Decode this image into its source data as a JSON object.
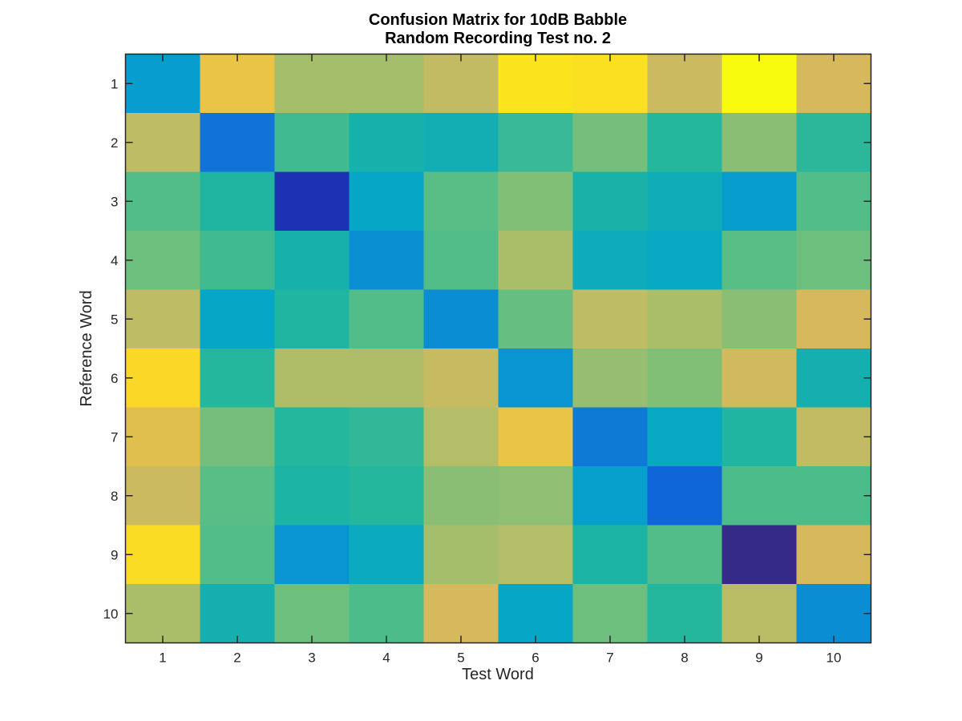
{
  "chart_data": {
    "type": "heatmap",
    "title": [
      "Confusion Matrix for 10dB Babble",
      "Random Recording Test no. 2"
    ],
    "xlabel": "Test Word",
    "ylabel": "Reference Word",
    "x_categories": [
      "1",
      "2",
      "3",
      "4",
      "5",
      "6",
      "7",
      "8",
      "9",
      "10"
    ],
    "y_categories": [
      "1",
      "2",
      "3",
      "4",
      "5",
      "6",
      "7",
      "8",
      "9",
      "10"
    ],
    "colormap": "parula",
    "color_scale": [
      0,
      1
    ],
    "values": [
      [
        0.33,
        0.85,
        0.7,
        0.7,
        0.76,
        0.95,
        0.94,
        0.78,
        1.0,
        0.8
      ],
      [
        0.75,
        0.2,
        0.55,
        0.47,
        0.45,
        0.54,
        0.63,
        0.51,
        0.66,
        0.52
      ],
      [
        0.58,
        0.5,
        0.05,
        0.4,
        0.59,
        0.65,
        0.48,
        0.44,
        0.33,
        0.58
      ],
      [
        0.62,
        0.55,
        0.47,
        0.28,
        0.58,
        0.71,
        0.43,
        0.41,
        0.59,
        0.62
      ],
      [
        0.75,
        0.4,
        0.5,
        0.58,
        0.27,
        0.61,
        0.75,
        0.71,
        0.66,
        0.8
      ],
      [
        0.92,
        0.51,
        0.72,
        0.72,
        0.77,
        0.29,
        0.68,
        0.65,
        0.79,
        0.46
      ],
      [
        0.83,
        0.63,
        0.51,
        0.53,
        0.73,
        0.85,
        0.22,
        0.41,
        0.5,
        0.76
      ],
      [
        0.78,
        0.59,
        0.49,
        0.51,
        0.66,
        0.67,
        0.35,
        0.18,
        0.57,
        0.57
      ],
      [
        0.93,
        0.58,
        0.29,
        0.42,
        0.7,
        0.73,
        0.49,
        0.58,
        0.0,
        0.8
      ],
      [
        0.71,
        0.46,
        0.62,
        0.57,
        0.8,
        0.4,
        0.62,
        0.51,
        0.74,
        0.27
      ]
    ],
    "grid": false
  }
}
